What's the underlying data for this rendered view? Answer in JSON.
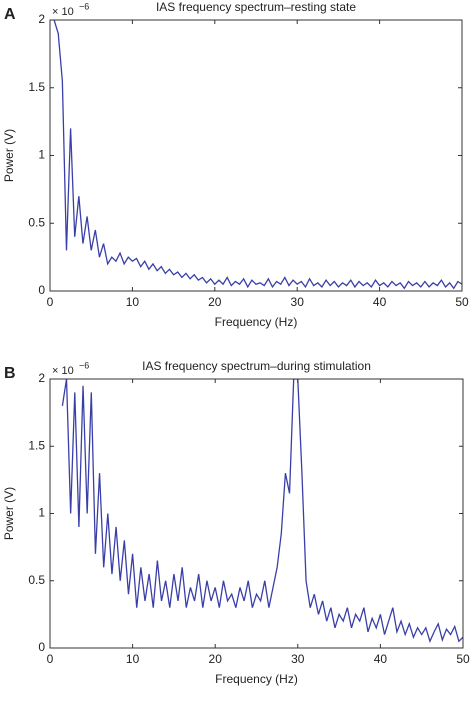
{
  "chart_data": [
    {
      "type": "line",
      "panel_label": "A",
      "title": "IAS frequency spectrum–resting state",
      "x_label": "Frequency (Hz)",
      "y_label": "Power (V)",
      "y_scale_label": "× 10",
      "y_scale_exponent": "−6",
      "xlim": [
        0,
        50
      ],
      "ylim": [
        0,
        2
      ],
      "xticks": [
        0,
        10,
        20,
        30,
        40,
        50
      ],
      "yticks": [
        0,
        0.5,
        1,
        1.5,
        2
      ],
      "x": [
        0.5,
        1,
        1.5,
        2,
        2.5,
        3,
        3.5,
        4,
        4.5,
        5,
        5.5,
        6,
        6.5,
        7,
        7.5,
        8,
        8.5,
        9,
        9.5,
        10,
        10.5,
        11,
        11.5,
        12,
        12.5,
        13,
        13.5,
        14,
        14.5,
        15,
        15.5,
        16,
        16.5,
        17,
        17.5,
        18,
        18.5,
        19,
        19.5,
        20,
        20.5,
        21,
        21.5,
        22,
        22.5,
        23,
        23.5,
        24,
        24.5,
        25,
        25.5,
        26,
        26.5,
        27,
        27.5,
        28,
        28.5,
        29,
        29.5,
        30,
        30.5,
        31,
        31.5,
        32,
        32.5,
        33,
        33.5,
        34,
        34.5,
        35,
        35.5,
        36,
        36.5,
        37,
        37.5,
        38,
        38.5,
        39,
        39.5,
        40,
        40.5,
        41,
        41.5,
        42,
        42.5,
        43,
        43.5,
        44,
        44.5,
        45,
        45.5,
        46,
        46.5,
        47,
        47.5,
        48,
        48.5,
        49,
        49.5,
        50
      ],
      "series": [
        {
          "color": "#3a3fa8",
          "values": [
            2.0,
            1.9,
            1.55,
            0.3,
            1.2,
            0.4,
            0.7,
            0.35,
            0.55,
            0.3,
            0.45,
            0.25,
            0.35,
            0.2,
            0.25,
            0.22,
            0.28,
            0.2,
            0.25,
            0.22,
            0.24,
            0.18,
            0.22,
            0.16,
            0.2,
            0.15,
            0.18,
            0.13,
            0.16,
            0.12,
            0.14,
            0.1,
            0.13,
            0.09,
            0.12,
            0.08,
            0.1,
            0.06,
            0.09,
            0.05,
            0.08,
            0.05,
            0.1,
            0.04,
            0.07,
            0.05,
            0.09,
            0.03,
            0.08,
            0.05,
            0.06,
            0.04,
            0.09,
            0.03,
            0.07,
            0.05,
            0.1,
            0.04,
            0.08,
            0.05,
            0.07,
            0.03,
            0.09,
            0.04,
            0.06,
            0.03,
            0.08,
            0.04,
            0.07,
            0.03,
            0.06,
            0.04,
            0.08,
            0.03,
            0.07,
            0.04,
            0.06,
            0.03,
            0.08,
            0.04,
            0.06,
            0.03,
            0.07,
            0.04,
            0.06,
            0.02,
            0.07,
            0.04,
            0.06,
            0.03,
            0.07,
            0.03,
            0.06,
            0.04,
            0.08,
            0.03,
            0.06,
            0.02,
            0.07,
            0.05
          ]
        }
      ]
    },
    {
      "type": "line",
      "panel_label": "B",
      "title": "IAS frequency spectrum–during stimulation",
      "x_label": "Frequency (Hz)",
      "y_label": "Power (V)",
      "y_scale_label": "× 10",
      "y_scale_exponent": "−6",
      "xlim": [
        0,
        50
      ],
      "ylim": [
        0,
        2
      ],
      "xticks": [
        0,
        10,
        20,
        30,
        40,
        50
      ],
      "yticks": [
        0,
        0.5,
        1,
        1.5,
        2
      ],
      "x": [
        1.5,
        2,
        2.5,
        3,
        3.5,
        4,
        4.5,
        5,
        5.5,
        6,
        6.5,
        7,
        7.5,
        8,
        8.5,
        9,
        9.5,
        10,
        10.5,
        11,
        11.5,
        12,
        12.5,
        13,
        13.5,
        14,
        14.5,
        15,
        15.5,
        16,
        16.5,
        17,
        17.5,
        18,
        18.5,
        19,
        19.5,
        20,
        20.5,
        21,
        21.5,
        22,
        22.5,
        23,
        23.5,
        24,
        24.5,
        25,
        25.5,
        26,
        26.5,
        27,
        27.5,
        28,
        28.5,
        29,
        29.5,
        30,
        30.5,
        31,
        31.5,
        32,
        32.5,
        33,
        33.5,
        34,
        34.5,
        35,
        35.5,
        36,
        36.5,
        37,
        37.5,
        38,
        38.5,
        39,
        39.5,
        40,
        40.5,
        41,
        41.5,
        42,
        42.5,
        43,
        43.5,
        44,
        44.5,
        45,
        45.5,
        46,
        46.5,
        47,
        47.5,
        48,
        48.5,
        49,
        49.5,
        50
      ],
      "series": [
        {
          "color": "#3a3fa8",
          "values": [
            1.8,
            2.0,
            1.0,
            1.9,
            0.9,
            1.95,
            1.0,
            1.9,
            0.7,
            1.3,
            0.6,
            1.0,
            0.55,
            0.9,
            0.5,
            0.8,
            0.4,
            0.7,
            0.3,
            0.6,
            0.35,
            0.55,
            0.3,
            0.65,
            0.35,
            0.5,
            0.3,
            0.55,
            0.35,
            0.6,
            0.3,
            0.45,
            0.35,
            0.55,
            0.3,
            0.5,
            0.35,
            0.45,
            0.3,
            0.5,
            0.35,
            0.4,
            0.3,
            0.45,
            0.35,
            0.5,
            0.3,
            0.4,
            0.35,
            0.5,
            0.3,
            0.45,
            0.6,
            0.85,
            1.3,
            1.15,
            2.0,
            2.0,
            1.3,
            0.5,
            0.3,
            0.4,
            0.25,
            0.35,
            0.2,
            0.3,
            0.15,
            0.25,
            0.2,
            0.3,
            0.15,
            0.25,
            0.2,
            0.3,
            0.12,
            0.22,
            0.15,
            0.25,
            0.1,
            0.2,
            0.3,
            0.12,
            0.2,
            0.1,
            0.18,
            0.08,
            0.15,
            0.1,
            0.15,
            0.05,
            0.12,
            0.18,
            0.06,
            0.14,
            0.1,
            0.16,
            0.05,
            0.08
          ]
        }
      ]
    }
  ]
}
